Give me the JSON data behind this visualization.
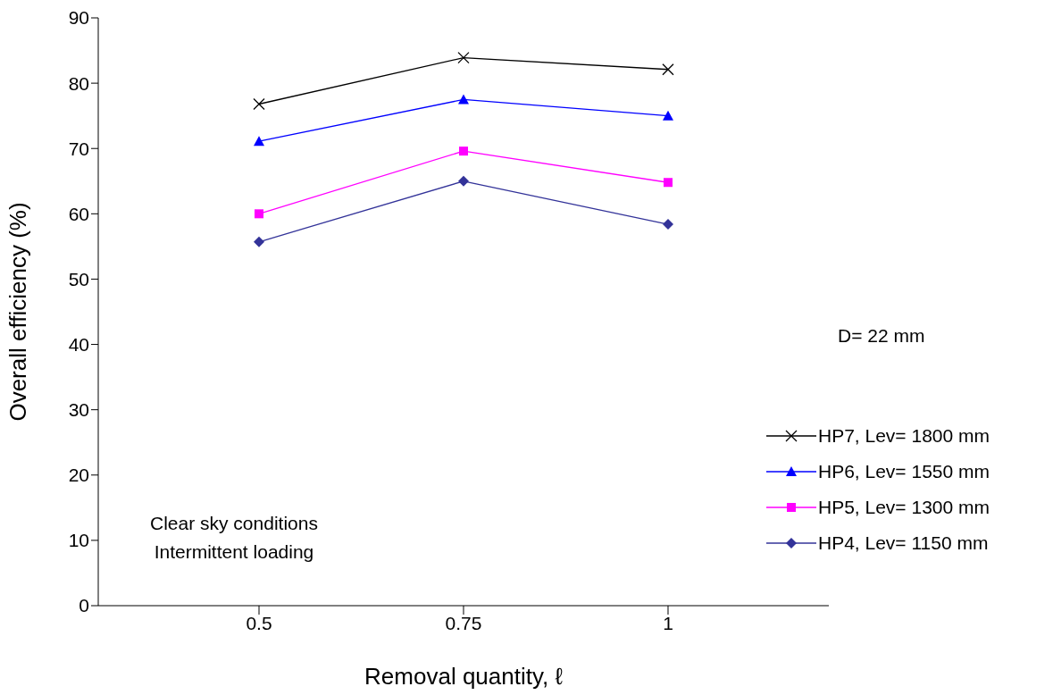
{
  "chart_data": {
    "type": "line",
    "xlabel": "Removal quantity, ℓ",
    "ylabel": "Overall efficiency (%)",
    "categories": [
      "0.5",
      "0.75",
      "1"
    ],
    "series": [
      {
        "name": "HP7, Lev= 1800 mm",
        "color": "#000000",
        "marker": "cross",
        "values": [
          76.8,
          83.9,
          82.1
        ]
      },
      {
        "name": "HP6, Lev= 1550 mm",
        "color": "#0000ff",
        "marker": "triangle",
        "values": [
          71.1,
          77.5,
          75.0
        ]
      },
      {
        "name": "HP5, Lev= 1300 mm",
        "color": "#ff00ff",
        "marker": "square",
        "values": [
          60.0,
          69.6,
          64.8
        ]
      },
      {
        "name": "HP4, Lev= 1150 mm",
        "color": "#333399",
        "marker": "diamond",
        "values": [
          55.7,
          65.0,
          58.4
        ]
      }
    ],
    "ylim": [
      0,
      90
    ],
    "yticks": [
      0,
      10,
      20,
      30,
      40,
      50,
      60,
      70,
      80,
      90
    ],
    "grid": false,
    "legend": "right",
    "line_style": "solid",
    "annotations": [
      "D= 22 mm",
      "Clear sky conditions\nIntermittent loading"
    ]
  }
}
